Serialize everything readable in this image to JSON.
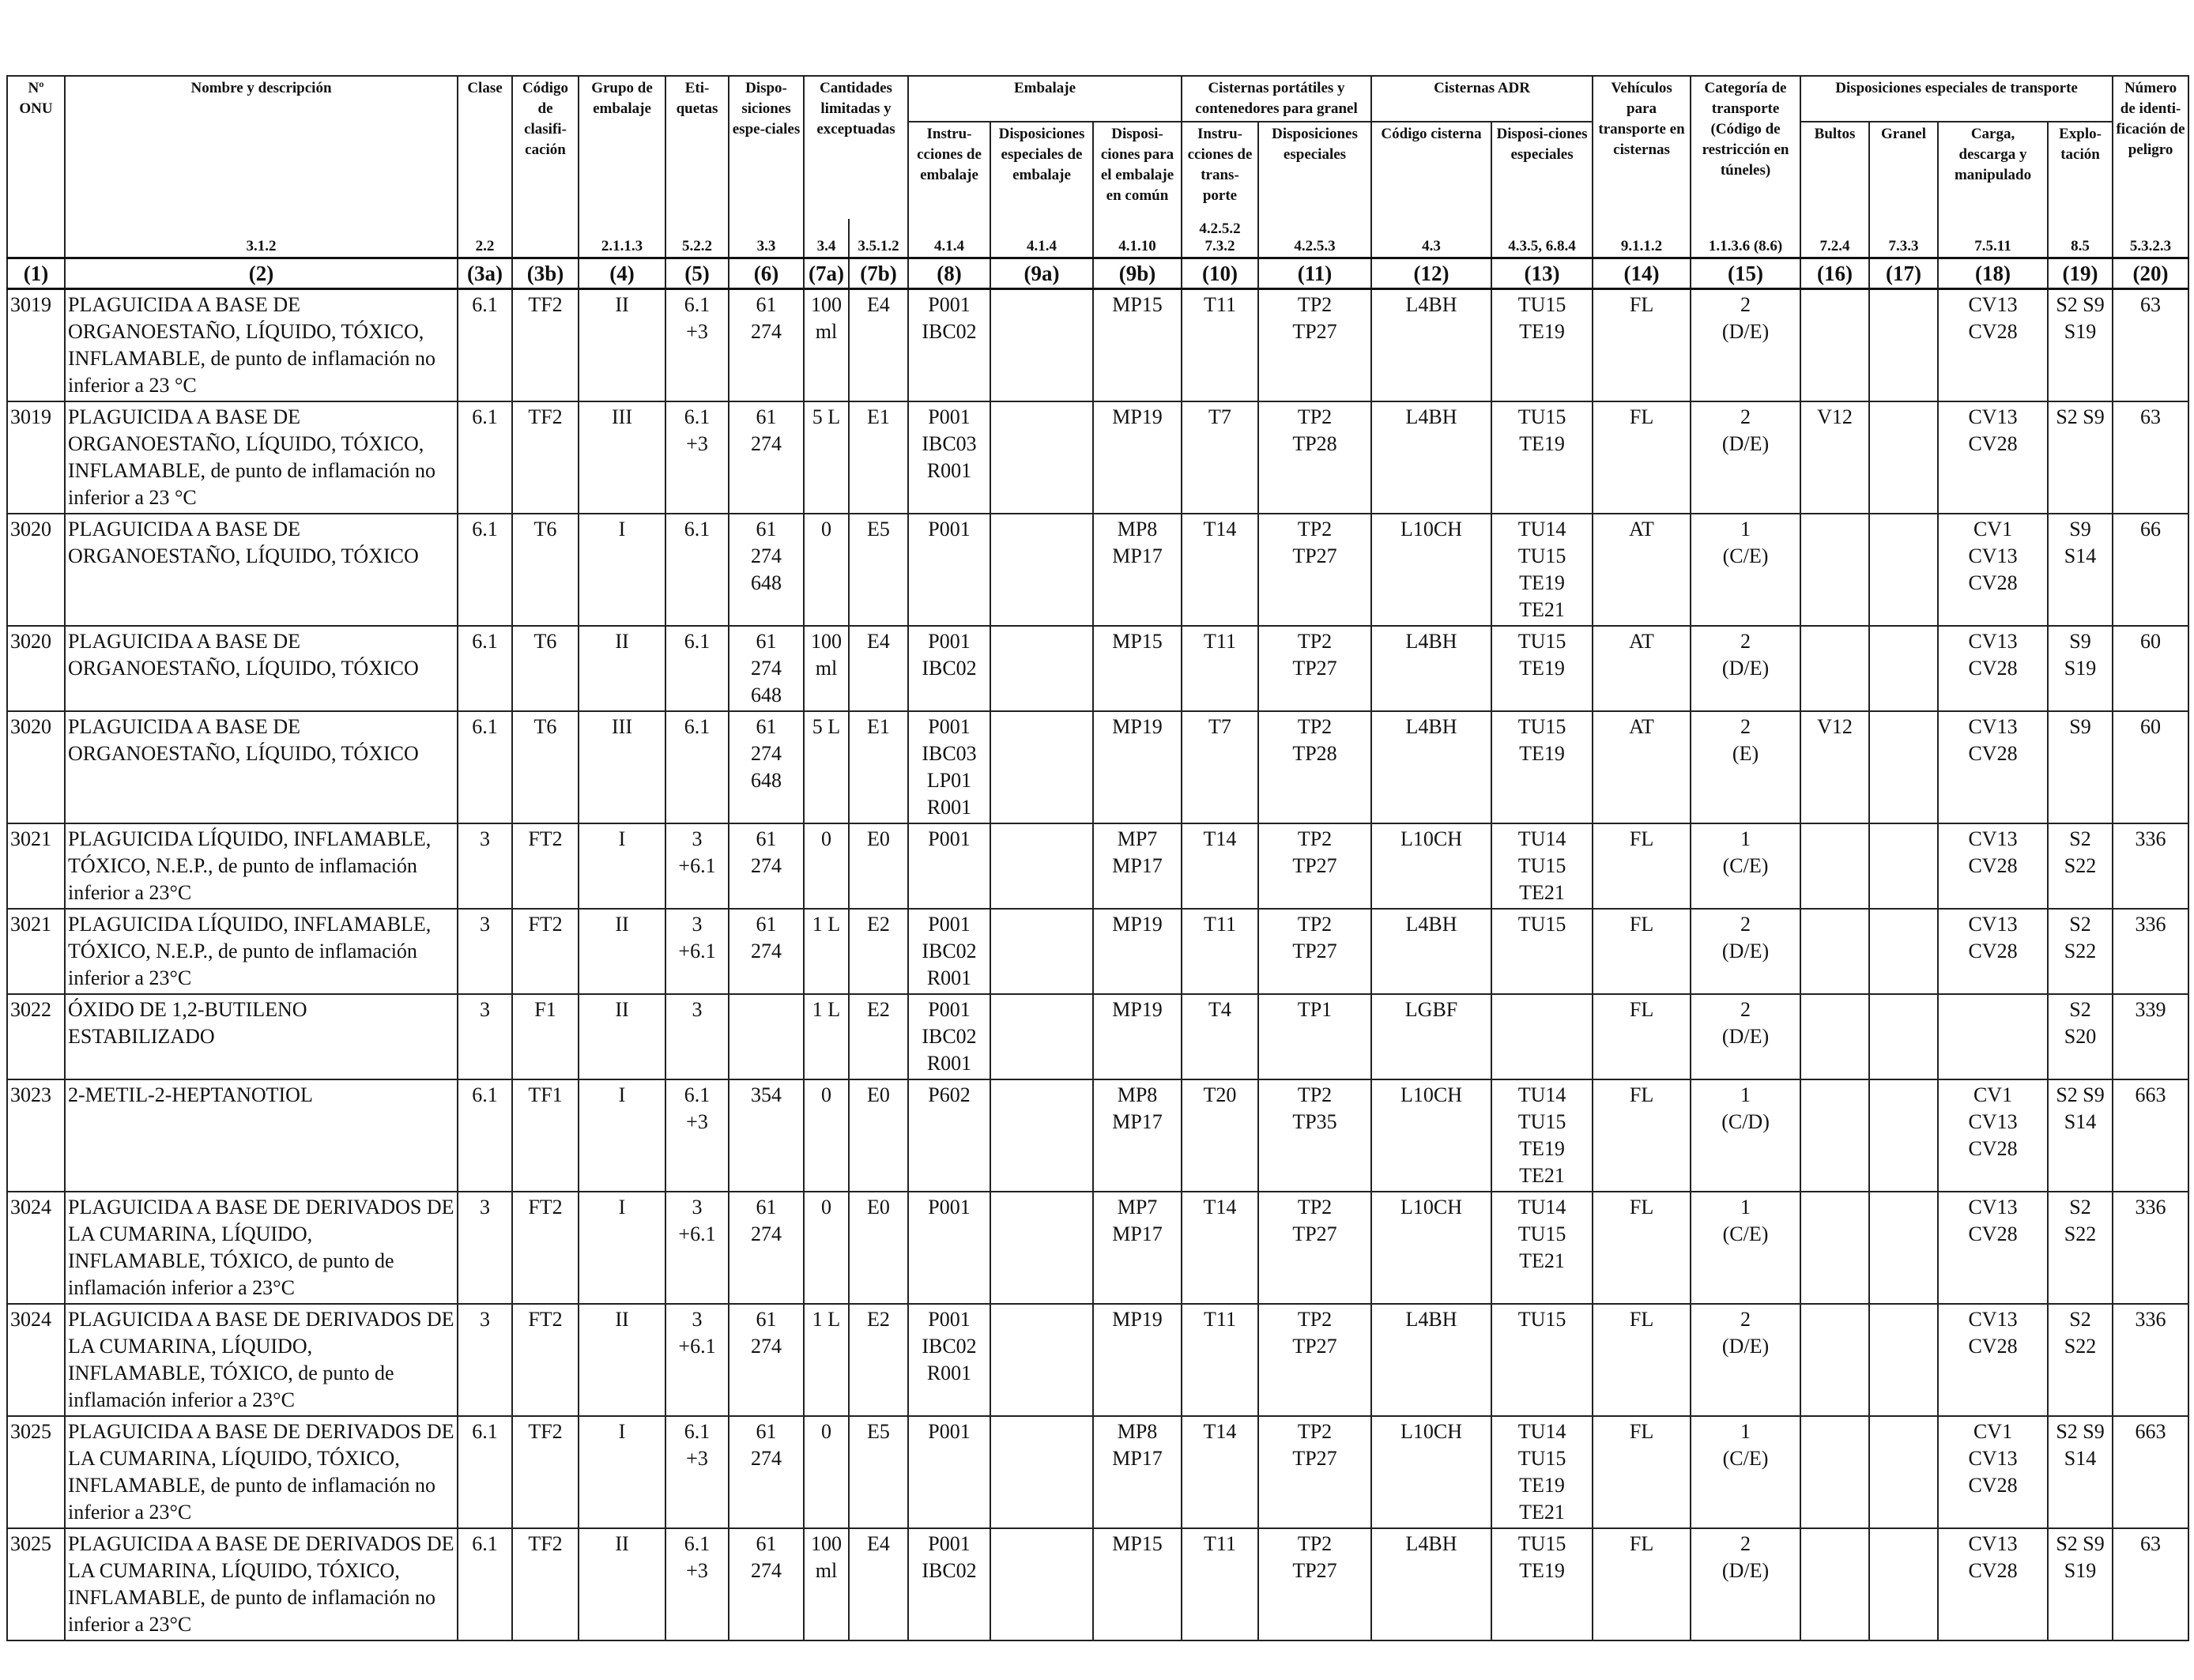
{
  "header": {
    "un_number": "Nº ONU",
    "name": "Nombre y descripción",
    "class": "Clase",
    "classification_code": "Código de clasifi-cación",
    "packing_group": "Grupo de embalaje",
    "labels": "Eti-quetas",
    "special_provisions": "Dispo-siciones espe-ciales",
    "limited_quantities": "Cantidades limitadas y exceptuadas",
    "packaging": "Embalaje",
    "packing_instructions": "Instru-cciones de embalaje",
    "special_packing_provisions": "Disposiciones especiales de embalaje",
    "mixed_packing": "Disposi-ciones para el embalaje en común",
    "portable_tanks": "Cisternas portátiles y contenedores para granel",
    "pt_instructions": "Instru-cciones de trans-porte",
    "pt_special": "Disposiciones especiales",
    "adr_tanks": "Cisternas ADR",
    "tank_code": "Código cisterna",
    "tank_special": "Disposi-ciones especiales",
    "vehicle": "Vehículos para transporte en cisternas",
    "transport_category": "Categoría de transporte (Código de restricción en túneles)",
    "special_transport": "Disposiciones especiales de transporte",
    "packages": "Bultos",
    "bulk": "Granel",
    "loading": "Carga, descarga y manipulado",
    "operation": "Explo-tación",
    "hazard_id": "Número de identi-ficación de peligro"
  },
  "refs": [
    "",
    "3.1.2",
    "2.2",
    "",
    "2.1.1.3",
    "5.2.2",
    "3.3",
    "3.4",
    "3.5.1.2",
    "4.1.4",
    "4.1.4",
    "4.1.10",
    "4.2.5.2 7.3.2",
    "4.2.5.3",
    "4.3",
    "4.3.5, 6.8.4",
    "9.1.1.2",
    "1.1.3.6 (8.6)",
    "7.2.4",
    "7.3.3",
    "7.5.11",
    "8.5",
    "5.3.2.3"
  ],
  "colnums": [
    "(1)",
    "(2)",
    "(3a)",
    "(3b)",
    "(4)",
    "(5)",
    "(6)",
    "(7a)",
    "(7b)",
    "(8)",
    "(9a)",
    "(9b)",
    "(10)",
    "(11)",
    "(12)",
    "(13)",
    "(14)",
    "(15)",
    "(16)",
    "(17)",
    "(18)",
    "(19)",
    "(20)"
  ],
  "rows": [
    [
      "3019",
      "PLAGUICIDA A BASE DE ORGANOESTAÑO, LÍQUIDO, TÓXICO, INFLAMABLE, de punto de inflamación no inferior a 23 °C",
      "6.1",
      "TF2",
      "II",
      "6.1\n+3",
      "61\n274",
      "100\nml",
      "E4",
      "P001\nIBC02",
      "",
      "MP15",
      "T11",
      "TP2\nTP27",
      "L4BH",
      "TU15\nTE19",
      "FL",
      "2\n(D/E)",
      "",
      "",
      "CV13\nCV28",
      "S2 S9\nS19",
      "63"
    ],
    [
      "3019",
      "PLAGUICIDA A BASE DE ORGANOESTAÑO, LÍQUIDO, TÓXICO, INFLAMABLE, de punto de inflamación no inferior a 23 °C",
      "6.1",
      "TF2",
      "III",
      "6.1\n+3",
      "61\n274",
      "5 L",
      "E1",
      "P001\nIBC03\nR001",
      "",
      "MP19",
      "T7",
      "TP2\nTP28",
      "L4BH",
      "TU15\nTE19",
      "FL",
      "2\n(D/E)",
      "V12",
      "",
      "CV13\nCV28",
      "S2 S9",
      "63"
    ],
    [
      "3020",
      "PLAGUICIDA A BASE DE ORGANOESTAÑO, LÍQUIDO, TÓXICO",
      "6.1",
      "T6",
      "I",
      "6.1",
      "61\n274\n648",
      "0",
      "E5",
      "P001",
      "",
      "MP8\nMP17",
      "T14",
      "TP2\nTP27",
      "L10CH",
      "TU14\nTU15\nTE19\nTE21",
      "AT",
      "1\n(C/E)",
      "",
      "",
      "CV1\nCV13\nCV28",
      "S9\nS14",
      "66"
    ],
    [
      "3020",
      "PLAGUICIDA A BASE DE ORGANOESTAÑO, LÍQUIDO, TÓXICO",
      "6.1",
      "T6",
      "II",
      "6.1",
      "61\n274\n648",
      "100\nml",
      "E4",
      "P001\nIBC02",
      "",
      "MP15",
      "T11",
      "TP2\nTP27",
      "L4BH",
      "TU15\nTE19",
      "AT",
      "2\n(D/E)",
      "",
      "",
      "CV13\nCV28",
      "S9\nS19",
      "60"
    ],
    [
      "3020",
      "PLAGUICIDA A BASE DE ORGANOESTAÑO, LÍQUIDO, TÓXICO",
      "6.1",
      "T6",
      "III",
      "6.1",
      "61\n274\n648",
      "5 L",
      "E1",
      "P001\nIBC03\nLP01\nR001",
      "",
      "MP19",
      "T7",
      "TP2\nTP28",
      "L4BH",
      "TU15\nTE19",
      "AT",
      "2\n(E)",
      "V12",
      "",
      "CV13\nCV28",
      "S9",
      "60"
    ],
    [
      "3021",
      "PLAGUICIDA LÍQUIDO, INFLAMABLE, TÓXICO, N.E.P., de punto de inflamación inferior a 23°C",
      "3",
      "FT2",
      "I",
      "3\n+6.1",
      "61\n274",
      "0",
      "E0",
      "P001",
      "",
      "MP7\nMP17",
      "T14",
      "TP2\nTP27",
      "L10CH",
      "TU14\nTU15\nTE21",
      "FL",
      "1\n(C/E)",
      "",
      "",
      "CV13\nCV28",
      "S2\nS22",
      "336"
    ],
    [
      "3021",
      "PLAGUICIDA LÍQUIDO, INFLAMABLE, TÓXICO, N.E.P., de punto de inflamación inferior a 23°C",
      "3",
      "FT2",
      "II",
      "3\n+6.1",
      "61\n274",
      "1 L",
      "E2",
      "P001\nIBC02\nR001",
      "",
      "MP19",
      "T11",
      "TP2\nTP27",
      "L4BH",
      "TU15",
      "FL",
      "2\n(D/E)",
      "",
      "",
      "CV13\nCV28",
      "S2\nS22",
      "336"
    ],
    [
      "3022",
      "ÓXIDO DE 1,2-BUTILENO ESTABILIZADO",
      "3",
      "F1",
      "II",
      "3",
      "",
      "1 L",
      "E2",
      "P001\nIBC02\nR001",
      "",
      "MP19",
      "T4",
      "TP1",
      "LGBF",
      "",
      "FL",
      "2\n(D/E)",
      "",
      "",
      "",
      "S2\nS20",
      "339"
    ],
    [
      "3023",
      "2-METIL-2-HEPTANOTIOL",
      "6.1",
      "TF1",
      "I",
      "6.1\n+3",
      "354",
      "0",
      "E0",
      "P602",
      "",
      "MP8\nMP17",
      "T20",
      "TP2\nTP35",
      "L10CH",
      "TU14\nTU15\nTE19\nTE21",
      "FL",
      "1\n(C/D)",
      "",
      "",
      "CV1\nCV13\nCV28",
      "S2 S9\nS14",
      "663"
    ],
    [
      "3024",
      "PLAGUICIDA A BASE DE DERIVADOS DE LA CUMARINA, LÍQUIDO, INFLAMABLE, TÓXICO, de punto de inflamación inferior a 23°C",
      "3",
      "FT2",
      "I",
      "3\n+6.1",
      "61\n274",
      "0",
      "E0",
      "P001",
      "",
      "MP7\nMP17",
      "T14",
      "TP2\nTP27",
      "L10CH",
      "TU14\nTU15\nTE21",
      "FL",
      "1\n(C/E)",
      "",
      "",
      "CV13\nCV28",
      "S2\nS22",
      "336"
    ],
    [
      "3024",
      "PLAGUICIDA A BASE DE DERIVADOS DE LA CUMARINA, LÍQUIDO, INFLAMABLE, TÓXICO, de punto de inflamación inferior a 23°C",
      "3",
      "FT2",
      "II",
      "3\n+6.1",
      "61\n274",
      "1 L",
      "E2",
      "P001\nIBC02\nR001",
      "",
      "MP19",
      "T11",
      "TP2\nTP27",
      "L4BH",
      "TU15",
      "FL",
      "2\n(D/E)",
      "",
      "",
      "CV13\nCV28",
      "S2\nS22",
      "336"
    ],
    [
      "3025",
      "PLAGUICIDA A BASE DE DERIVADOS DE LA CUMARINA, LÍQUIDO, TÓXICO, INFLAMABLE, de punto de inflamación no inferior a 23°C",
      "6.1",
      "TF2",
      "I",
      "6.1\n+3",
      "61\n274",
      "0",
      "E5",
      "P001",
      "",
      "MP8\nMP17",
      "T14",
      "TP2\nTP27",
      "L10CH",
      "TU14\nTU15\nTE19\nTE21",
      "FL",
      "1\n(C/E)",
      "",
      "",
      "CV1\nCV13\nCV28",
      "S2 S9\nS14",
      "663"
    ],
    [
      "3025",
      "PLAGUICIDA A BASE DE DERIVADOS DE LA CUMARINA, LÍQUIDO, TÓXICO, INFLAMABLE, de punto de inflamación no inferior a 23°C",
      "6.1",
      "TF2",
      "II",
      "6.1\n+3",
      "61\n274",
      "100\nml",
      "E4",
      "P001\nIBC02",
      "",
      "MP15",
      "T11",
      "TP2\nTP27",
      "L4BH",
      "TU15\nTE19",
      "FL",
      "2\n(D/E)",
      "",
      "",
      "CV13\nCV28",
      "S2 S9\nS19",
      "63"
    ]
  ]
}
